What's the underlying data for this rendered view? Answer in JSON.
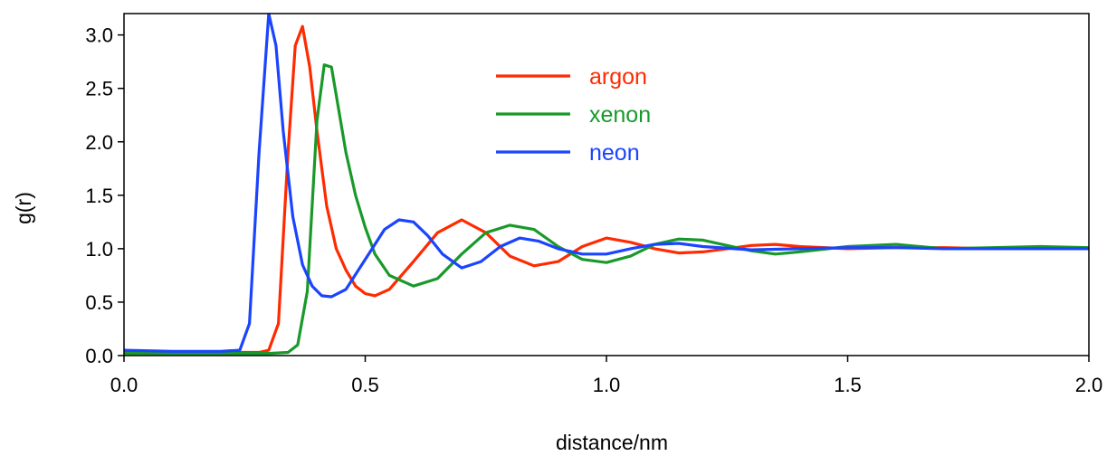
{
  "chart_data": {
    "type": "line",
    "xlabel": "distance/nm",
    "ylabel": "g(r)",
    "xlim": [
      0,
      2.0
    ],
    "ylim": [
      0,
      3.2
    ],
    "xticks": [
      "0.0",
      "0.5",
      "1.0",
      "1.5",
      "2.0"
    ],
    "yticks": [
      "0.0",
      "0.5",
      "1.0",
      "1.5",
      "2.0",
      "2.5",
      "3.0"
    ],
    "grid": false,
    "legend_placement": "top-center",
    "series": [
      {
        "name": "argon",
        "color": "#ff2a00",
        "x": [
          0.0,
          0.1,
          0.2,
          0.28,
          0.3,
          0.32,
          0.34,
          0.355,
          0.37,
          0.385,
          0.4,
          0.42,
          0.44,
          0.46,
          0.48,
          0.5,
          0.52,
          0.55,
          0.6,
          0.65,
          0.7,
          0.75,
          0.8,
          0.85,
          0.9,
          0.95,
          1.0,
          1.05,
          1.1,
          1.15,
          1.2,
          1.25,
          1.3,
          1.35,
          1.4,
          1.5,
          1.6,
          1.7,
          1.8,
          1.9,
          2.0
        ],
        "y": [
          0.03,
          0.03,
          0.03,
          0.03,
          0.05,
          0.3,
          1.9,
          2.9,
          3.08,
          2.7,
          2.1,
          1.4,
          1.0,
          0.8,
          0.65,
          0.58,
          0.56,
          0.62,
          0.88,
          1.15,
          1.27,
          1.15,
          0.93,
          0.84,
          0.88,
          1.02,
          1.1,
          1.06,
          1.0,
          0.96,
          0.97,
          1.0,
          1.03,
          1.04,
          1.02,
          1.0,
          1.01,
          1.01,
          1.0,
          1.0,
          1.0
        ]
      },
      {
        "name": "xenon",
        "color": "#19992a",
        "x": [
          0.0,
          0.1,
          0.2,
          0.3,
          0.34,
          0.36,
          0.38,
          0.4,
          0.415,
          0.43,
          0.445,
          0.46,
          0.48,
          0.5,
          0.52,
          0.55,
          0.6,
          0.65,
          0.7,
          0.75,
          0.8,
          0.85,
          0.9,
          0.95,
          1.0,
          1.05,
          1.1,
          1.15,
          1.2,
          1.25,
          1.3,
          1.35,
          1.4,
          1.5,
          1.6,
          1.7,
          1.8,
          1.9,
          2.0
        ],
        "y": [
          0.02,
          0.02,
          0.02,
          0.02,
          0.03,
          0.1,
          0.6,
          2.2,
          2.72,
          2.7,
          2.3,
          1.9,
          1.5,
          1.2,
          0.95,
          0.75,
          0.65,
          0.72,
          0.95,
          1.15,
          1.22,
          1.18,
          1.02,
          0.9,
          0.87,
          0.93,
          1.04,
          1.09,
          1.08,
          1.03,
          0.98,
          0.95,
          0.97,
          1.02,
          1.04,
          1.0,
          1.01,
          1.02,
          1.01
        ]
      },
      {
        "name": "neon",
        "color": "#1a44ff",
        "x": [
          0.0,
          0.1,
          0.2,
          0.24,
          0.26,
          0.28,
          0.3,
          0.315,
          0.33,
          0.35,
          0.37,
          0.39,
          0.41,
          0.43,
          0.46,
          0.5,
          0.54,
          0.57,
          0.6,
          0.63,
          0.66,
          0.7,
          0.74,
          0.78,
          0.82,
          0.86,
          0.9,
          0.95,
          1.0,
          1.05,
          1.1,
          1.15,
          1.2,
          1.3,
          1.4,
          1.5,
          1.6,
          1.7,
          1.8,
          1.9,
          2.0
        ],
        "y": [
          0.05,
          0.04,
          0.04,
          0.05,
          0.3,
          1.9,
          3.2,
          2.9,
          2.1,
          1.3,
          0.85,
          0.65,
          0.56,
          0.55,
          0.62,
          0.9,
          1.18,
          1.27,
          1.25,
          1.12,
          0.95,
          0.82,
          0.88,
          1.02,
          1.1,
          1.07,
          1.0,
          0.95,
          0.95,
          1.0,
          1.04,
          1.05,
          1.02,
          0.99,
          1.0,
          1.01,
          1.01,
          1.0,
          1.0,
          1.0,
          1.0
        ]
      }
    ]
  }
}
